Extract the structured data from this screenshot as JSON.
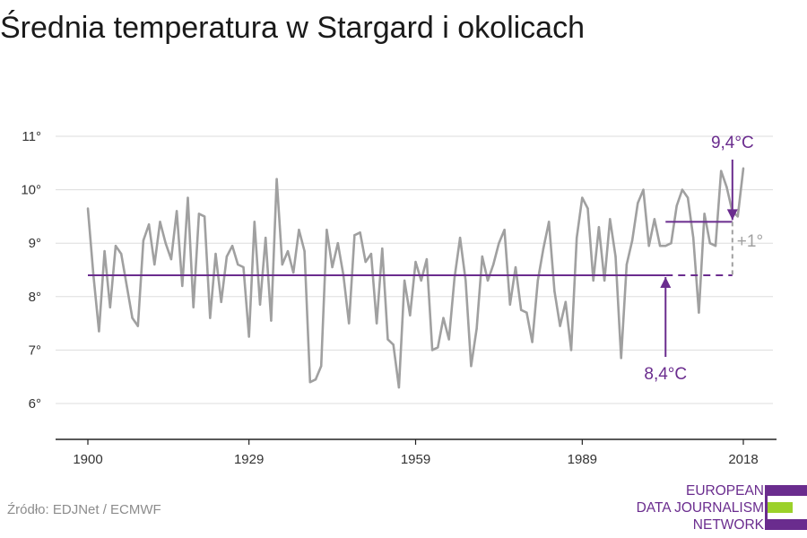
{
  "title": "Średnia temperatura w Stargard i okolicach",
  "source": "Źródło: EDJNet / ECMWF",
  "logo": {
    "line1": "EUROPEAN",
    "line2": "DATA JOURNALISM",
    "line3": "NETWORK"
  },
  "colors": {
    "line": "#a0a0a0",
    "accent": "#6a2c8e",
    "logo_green": "#9bd12a",
    "delta": "#a0a0a0",
    "grid": "#dddddd"
  },
  "chart_data": {
    "type": "line",
    "title": "Średnia temperatura w Stargard i okolicach",
    "xlabel": "",
    "ylabel": "",
    "xlim": [
      1900,
      2018
    ],
    "ylim": [
      5.4,
      11.3
    ],
    "grid": true,
    "x_ticks": [
      1900,
      1929,
      1959,
      1989,
      2018
    ],
    "x_tick_labels": [
      "1900",
      "1929",
      "1959",
      "1989",
      "2018"
    ],
    "y_ticks": [
      6,
      7,
      8,
      9,
      10,
      11
    ],
    "y_tick_labels": [
      "6°",
      "7°",
      "8°",
      "9°",
      "10°",
      "11°"
    ],
    "series": [
      {
        "x": [
          1900,
          1901,
          1902,
          1903,
          1904,
          1905,
          1906,
          1907,
          1908,
          1909,
          1910,
          1911,
          1912,
          1913,
          1914,
          1915,
          1916,
          1917,
          1918,
          1919,
          1920,
          1921,
          1922,
          1923,
          1924,
          1925,
          1926,
          1927,
          1928,
          1929,
          1930,
          1931,
          1932,
          1933,
          1934,
          1935,
          1936,
          1937,
          1938,
          1939,
          1940,
          1941,
          1942,
          1943,
          1944,
          1945,
          1946,
          1947,
          1948,
          1949,
          1950,
          1951,
          1952,
          1953,
          1954,
          1955,
          1956,
          1957,
          1958,
          1959,
          1960,
          1961,
          1962,
          1963,
          1964,
          1965,
          1966,
          1967,
          1968,
          1969,
          1970,
          1971,
          1972,
          1973,
          1974,
          1975,
          1976,
          1977,
          1978,
          1979,
          1980,
          1981,
          1982,
          1983,
          1984,
          1985,
          1986,
          1987,
          1988,
          1989,
          1990,
          1991,
          1992,
          1993,
          1994,
          1995,
          1996,
          1997,
          1998,
          1999,
          2000,
          2001,
          2002,
          2003,
          2004,
          2005,
          2006,
          2007,
          2008,
          2009,
          2010,
          2011,
          2012,
          2013,
          2014,
          2015,
          2016,
          2017,
          2018
        ],
        "values": [
          9.65,
          8.4,
          7.35,
          8.85,
          7.8,
          8.95,
          8.8,
          8.2,
          7.6,
          7.45,
          9.05,
          9.35,
          8.6,
          9.4,
          9.0,
          8.7,
          9.6,
          8.2,
          9.85,
          7.8,
          9.55,
          9.5,
          7.6,
          8.8,
          7.9,
          8.75,
          8.95,
          8.6,
          8.55,
          7.25,
          9.4,
          7.85,
          9.1,
          7.55,
          10.2,
          8.6,
          8.85,
          8.45,
          9.25,
          8.85,
          6.4,
          6.45,
          6.7,
          9.25,
          8.55,
          9.0,
          8.4,
          7.5,
          9.15,
          9.2,
          8.65,
          8.8,
          7.5,
          8.9,
          7.2,
          7.1,
          6.3,
          8.3,
          7.65,
          8.65,
          8.3,
          8.7,
          7.0,
          7.05,
          7.6,
          7.2,
          8.35,
          9.1,
          8.3,
          6.7,
          7.4,
          8.75,
          8.3,
          8.6,
          9.0,
          9.25,
          7.85,
          8.55,
          7.75,
          7.7,
          7.15,
          8.3,
          8.9,
          9.4,
          8.1,
          7.45,
          7.9,
          7.0,
          9.1,
          9.85,
          9.65,
          8.3,
          9.3,
          8.3,
          9.45,
          8.75,
          6.85,
          8.6,
          9.05,
          9.75,
          10.0,
          8.95,
          9.45,
          8.95,
          8.95,
          9.0,
          9.7,
          10.0,
          9.85,
          9.1,
          7.7,
          9.55,
          9.0,
          8.95,
          10.35,
          10.05,
          9.6,
          9.5,
          10.4
        ]
      }
    ],
    "reference_lines": [
      {
        "value": 8.4,
        "from": 1900,
        "solid_to": 2004,
        "dashed_to": 2017
      },
      {
        "value": 9.4,
        "from": 2004,
        "to": 2017
      }
    ],
    "annotations": {
      "high_label": "9,4°C",
      "low_label": "8,4°C",
      "delta_label": "+1°"
    }
  }
}
